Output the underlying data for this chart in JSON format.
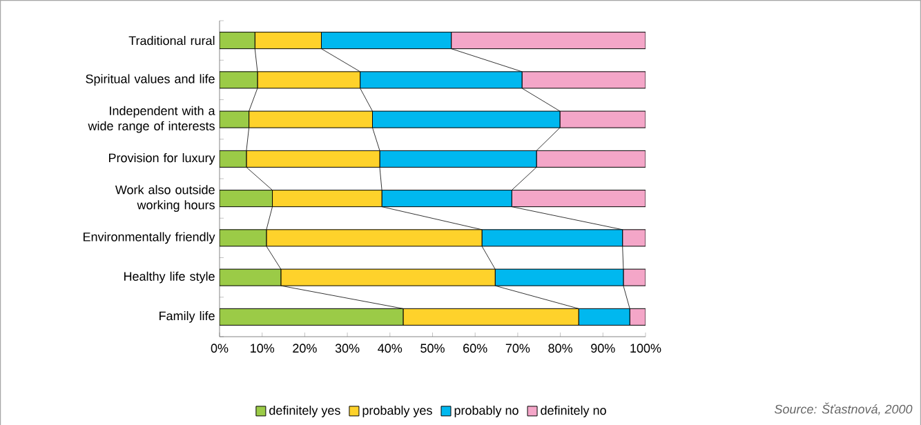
{
  "chart_data": {
    "type": "bar",
    "orientation": "horizontal",
    "stacked": true,
    "categories": [
      "Traditional rural",
      "Spiritual values and life",
      "Independent with a wide range of interests",
      "Provision for luxury",
      "Work also outside working hours",
      "Environmentally friendly",
      "Healthy life style",
      "Family life"
    ],
    "series": [
      {
        "name": "definitely yes",
        "color": "#9bcb47",
        "values": [
          8.3,
          8.9,
          6.9,
          6.3,
          12.4,
          11.0,
          14.4,
          43.1
        ]
      },
      {
        "name": "probably yes",
        "color": "#fed22b",
        "values": [
          15.6,
          24.1,
          29.0,
          31.3,
          25.7,
          50.6,
          50.3,
          41.2
        ]
      },
      {
        "name": "probably no",
        "color": "#00b8ef",
        "values": [
          30.5,
          38.0,
          44.0,
          36.8,
          30.5,
          33.0,
          30.1,
          12.0
        ]
      },
      {
        "name": "definitely no",
        "color": "#f4a6c8",
        "values": [
          45.6,
          29.0,
          20.1,
          25.6,
          31.4,
          5.4,
          5.2,
          3.7
        ]
      }
    ],
    "xlim": [
      0,
      100
    ],
    "xticks": [
      {
        "value": 0,
        "label": "0%"
      },
      {
        "value": 10,
        "label": "10%"
      },
      {
        "value": 20,
        "label": "20%"
      },
      {
        "value": 30,
        "label": "30%"
      },
      {
        "value": 40,
        "label": "40%"
      },
      {
        "value": 50,
        "label": "50%"
      },
      {
        "value": 60,
        "label": "60%"
      },
      {
        "value": 70,
        "label": "70%"
      },
      {
        "value": 80,
        "label": "80%"
      },
      {
        "value": 90,
        "label": "90%"
      },
      {
        "value": 100,
        "label": "100%"
      }
    ],
    "grid": false,
    "legend": "bottom",
    "annotations": [
      "Source: Šťastnová, 2000"
    ]
  }
}
